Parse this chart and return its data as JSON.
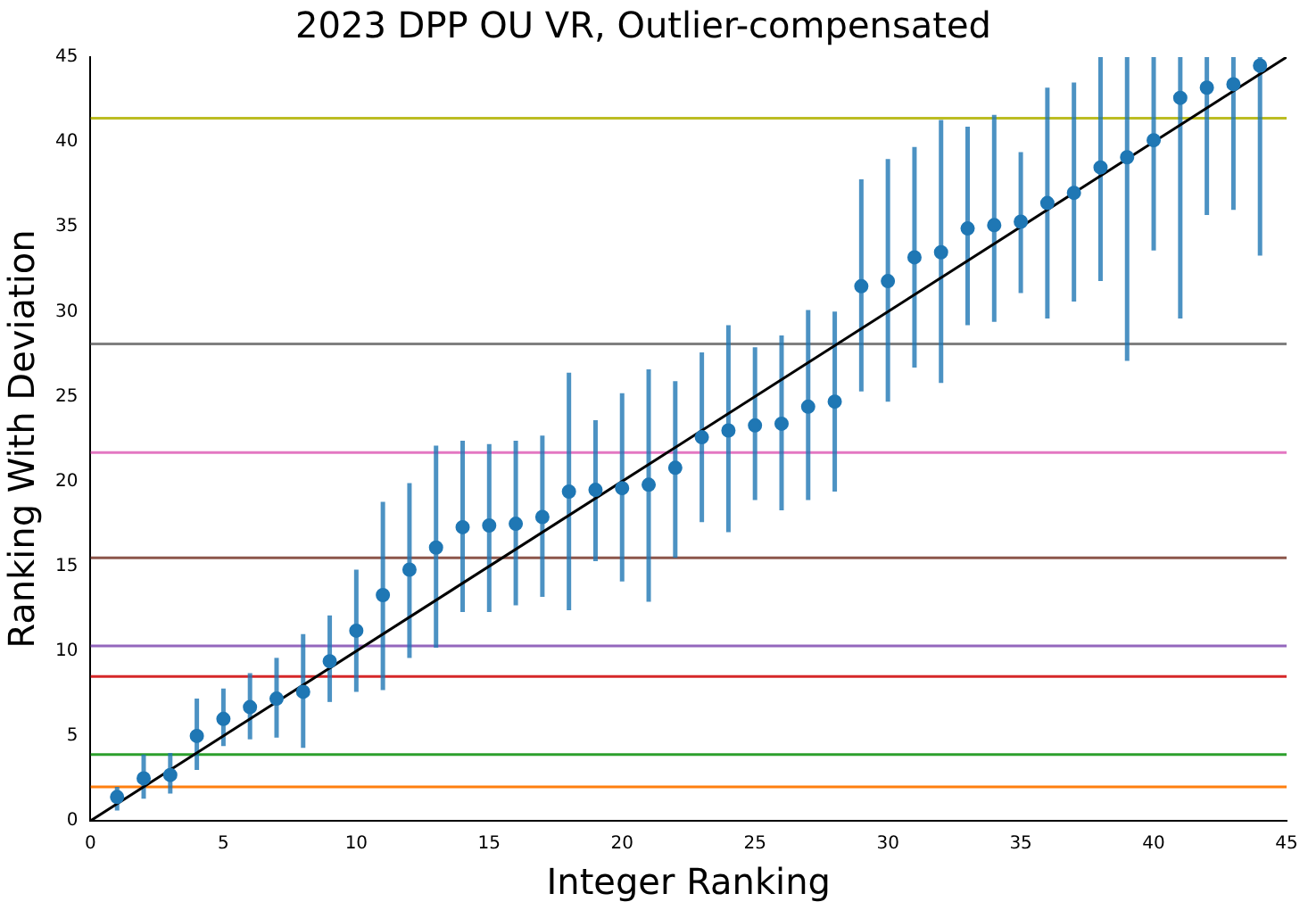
{
  "chart_data": {
    "type": "scatter",
    "title": "2023 DPP OU VR, Outlier-compensated",
    "xlabel": "Integer Ranking",
    "ylabel": "Ranking With Deviation",
    "xlim": [
      0,
      45
    ],
    "xticks": [
      0,
      5,
      10,
      15,
      20,
      25,
      30,
      35,
      40,
      45
    ],
    "ylim": [
      0,
      45
    ],
    "yticks": [
      0,
      5,
      10,
      15,
      20,
      25,
      30,
      35,
      40,
      45
    ],
    "grid": false,
    "legend": false,
    "marker": "circle",
    "series": [
      {
        "color": "#1f77b4",
        "x": [
          1,
          2,
          3,
          4,
          5,
          6,
          7,
          8,
          9,
          10,
          11,
          12,
          13,
          14,
          15,
          16,
          17,
          18,
          19,
          20,
          21,
          22,
          23,
          24,
          25,
          26,
          27,
          28,
          29,
          30,
          31,
          32,
          33,
          34,
          35,
          36,
          37,
          38,
          39,
          40,
          41,
          42,
          43,
          44
        ],
        "values": [
          1.4,
          2.5,
          2.7,
          5.0,
          6.0,
          6.7,
          7.2,
          7.6,
          9.4,
          11.2,
          13.3,
          14.8,
          16.1,
          17.3,
          17.4,
          17.5,
          17.9,
          19.4,
          19.5,
          19.6,
          19.8,
          20.8,
          22.6,
          23.0,
          23.3,
          23.4,
          24.4,
          24.7,
          31.5,
          31.8,
          33.2,
          33.5,
          34.9,
          35.1,
          35.3,
          36.4,
          37.0,
          38.5,
          39.1,
          40.1,
          42.6,
          43.2,
          43.4,
          44.5
        ],
        "errors": [
          [
            0.6,
            2.0
          ],
          [
            1.3,
            3.9
          ],
          [
            1.6,
            4.0
          ],
          [
            3.0,
            7.2
          ],
          [
            4.4,
            7.8
          ],
          [
            4.8,
            8.7
          ],
          [
            4.9,
            9.6
          ],
          [
            4.3,
            11.0
          ],
          [
            7.0,
            12.1
          ],
          [
            7.6,
            14.8
          ],
          [
            7.7,
            18.8
          ],
          [
            9.6,
            19.9
          ],
          [
            10.2,
            22.1
          ],
          [
            12.3,
            22.4
          ],
          [
            12.3,
            22.2
          ],
          [
            12.7,
            22.4
          ],
          [
            13.2,
            22.7
          ],
          [
            12.4,
            26.4
          ],
          [
            15.3,
            23.6
          ],
          [
            14.1,
            25.2
          ],
          [
            12.9,
            26.6
          ],
          [
            15.5,
            25.9
          ],
          [
            17.6,
            27.6
          ],
          [
            17.0,
            29.2
          ],
          [
            18.9,
            27.9
          ],
          [
            18.3,
            28.6
          ],
          [
            18.9,
            30.1
          ],
          [
            19.4,
            30.0
          ],
          [
            25.3,
            37.8
          ],
          [
            24.7,
            39.0
          ],
          [
            26.7,
            39.7
          ],
          [
            25.8,
            41.3
          ],
          [
            29.2,
            40.9
          ],
          [
            29.4,
            41.6
          ],
          [
            31.1,
            39.4
          ],
          [
            29.6,
            43.2
          ],
          [
            30.6,
            43.5
          ],
          [
            31.8,
            45
          ],
          [
            27.1,
            45
          ],
          [
            33.6,
            45
          ],
          [
            29.6,
            45
          ],
          [
            35.7,
            45
          ],
          [
            36.0,
            45
          ],
          [
            33.3,
            45
          ]
        ]
      },
      {
        "type": "line",
        "color": "#000000",
        "marker": "none",
        "x": [
          0,
          45
        ],
        "values": [
          0,
          45
        ]
      }
    ],
    "ref_lines": [
      {
        "axis": "y",
        "value": 2.0,
        "color": "#ff7f0e"
      },
      {
        "axis": "y",
        "value": 3.9,
        "color": "#2ca02c"
      },
      {
        "axis": "y",
        "value": 8.5,
        "color": "#d62728"
      },
      {
        "axis": "y",
        "value": 10.3,
        "color": "#9467bd"
      },
      {
        "axis": "y",
        "value": 15.5,
        "color": "#8c564b"
      },
      {
        "axis": "y",
        "value": 21.7,
        "color": "#e377c2"
      },
      {
        "axis": "y",
        "value": 28.1,
        "color": "#7f7f7f"
      },
      {
        "axis": "y",
        "value": 41.4,
        "color": "#bcbd22"
      }
    ]
  }
}
